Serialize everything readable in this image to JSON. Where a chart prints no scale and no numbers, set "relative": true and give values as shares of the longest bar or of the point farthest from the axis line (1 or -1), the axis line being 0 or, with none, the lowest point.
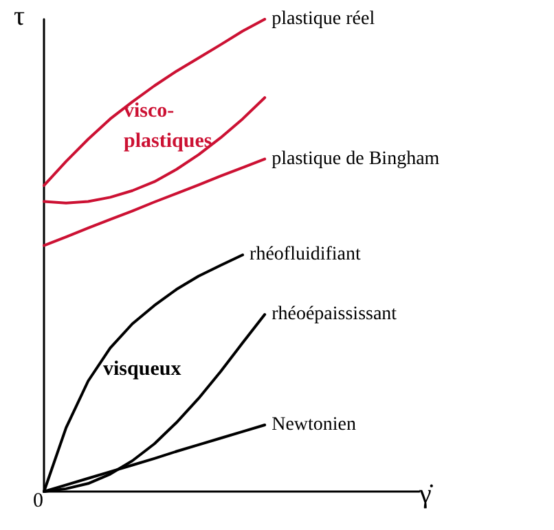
{
  "chart_data": {
    "type": "line",
    "relative": true,
    "xlabel": "γ̇",
    "ylabel": "τ",
    "categories": [
      null,
      null,
      null,
      null,
      null,
      null,
      null,
      null,
      null,
      null,
      null,
      null,
      null,
      null,
      null,
      null,
      null,
      null
    ],
    "series": [
      {
        "name": "plastique réel",
        "color": "#cc1133",
        "values": [
          0.648,
          0.699,
          0.746,
          0.789,
          0.825,
          0.859,
          0.89,
          0.918,
          0.946,
          0.975,
          1.0,
          null,
          null,
          null,
          null,
          null,
          null,
          null
        ]
      },
      {
        "color": "#cc1133",
        "values": [
          0.614,
          0.611,
          0.614,
          0.623,
          0.637,
          0.656,
          0.682,
          0.713,
          0.749,
          0.789,
          0.834,
          null,
          null,
          null,
          null,
          null,
          null,
          null
        ]
      },
      {
        "name": "plastique de Bingham",
        "color": "#cc1133",
        "values": [
          0.521,
          0.539,
          0.558,
          0.576,
          0.594,
          0.613,
          0.631,
          0.649,
          0.668,
          0.686,
          0.704,
          null,
          null,
          null,
          null,
          null,
          null,
          null
        ]
      },
      {
        "name": "rhéofluidifiant",
        "color": "#000000",
        "values": [
          0,
          0.135,
          0.234,
          0.304,
          0.355,
          0.394,
          0.428,
          0.456,
          0.479,
          0.501,
          null,
          null,
          null,
          null,
          null,
          null,
          null,
          null
        ]
      },
      {
        "name": "rhéoépaississant",
        "color": "#000000",
        "values": [
          0,
          0.006,
          0.017,
          0.037,
          0.065,
          0.101,
          0.146,
          0.197,
          0.254,
          0.315,
          0.375,
          null,
          null,
          null,
          null,
          null,
          null,
          null
        ]
      },
      {
        "name": "Newtonien",
        "color": "#000000",
        "values": [
          0,
          0.014,
          0.028,
          0.042,
          0.056,
          0.07,
          0.085,
          0.099,
          0.113,
          0.127,
          0.141,
          null,
          null,
          null,
          null,
          null,
          null,
          null
        ]
      }
    ],
    "annotations": [
      "visco-\nplastiques",
      "visqueux",
      "0"
    ],
    "marker": "none",
    "line_style": "solid",
    "grid": false
  }
}
